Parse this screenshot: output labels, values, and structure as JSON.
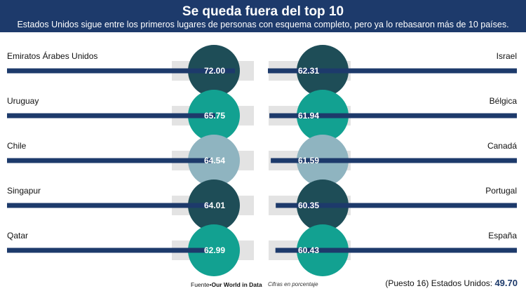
{
  "header": {
    "title": "Se queda fuera del top 10",
    "subtitle": "Estados Unidos sigue entre los primeros lugares de personas con esquema completo, pero ya lo rebasaron más de 10 países."
  },
  "chart_data": {
    "type": "bar",
    "title": "Se queda fuera del top 10",
    "unit": "Cifras en porcentaje",
    "max": 100,
    "left": [
      {
        "country": "Emiratos Árabes Unidos",
        "value": 72.0,
        "label": "72.00",
        "color": "#1e4d57"
      },
      {
        "country": "Uruguay",
        "value": 65.75,
        "label": "65.75",
        "color": "#12a191"
      },
      {
        "country": "Chile",
        "value": 64.54,
        "label": "64.54",
        "color": "#8fb4c0"
      },
      {
        "country": "Singapur",
        "value": 64.01,
        "label": "64.01",
        "color": "#1e4d57"
      },
      {
        "country": "Qatar",
        "value": 62.99,
        "label": "62.99",
        "color": "#12a191"
      }
    ],
    "right": [
      {
        "country": "Israel",
        "value": 62.31,
        "label": "62.31",
        "color": "#1e4d57"
      },
      {
        "country": "Bélgica",
        "value": 61.94,
        "label": "61.94",
        "color": "#12a191"
      },
      {
        "country": "Canadá",
        "value": 61.59,
        "label": "61.59",
        "color": "#8fb4c0"
      },
      {
        "country": "Portugal",
        "value": 60.35,
        "label": "60.35",
        "color": "#1e4d57"
      },
      {
        "country": "España",
        "value": 60.43,
        "label": "60.43",
        "color": "#12a191"
      }
    ],
    "bar_color": "#1d3a6b",
    "track_color": "#e3e3e3"
  },
  "footer": {
    "source_prefix": "Fuente•",
    "source_name": "Our World in Data",
    "note": "Cifras en porcentaje",
    "us_label": "(Puesto 16) Estados Unidos:",
    "us_value": "49.70"
  }
}
